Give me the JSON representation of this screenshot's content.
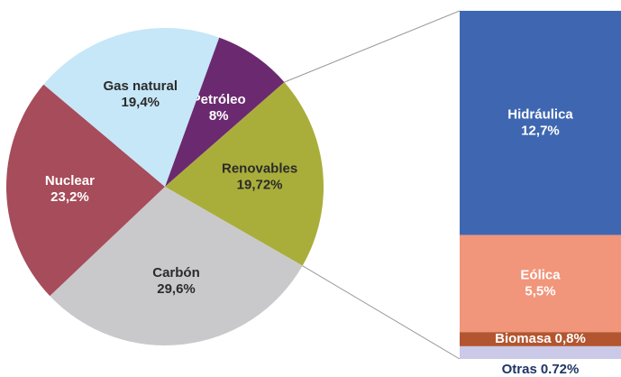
{
  "chart_data": [
    {
      "type": "pie",
      "categories": [
        "Petróleo",
        "Renovables",
        "Carbón",
        "Nuclear",
        "Gas natural"
      ],
      "values": [
        8,
        19.72,
        29.6,
        23.2,
        19.4
      ],
      "value_labels": [
        "8%",
        "19,72%",
        "29,6%",
        "23,2%",
        "19,4%"
      ],
      "colors": [
        "#6b2a6f",
        "#a9ae3b",
        "#c9c9cb",
        "#a64c5b",
        "#c6e7f8"
      ]
    },
    {
      "type": "bar",
      "categories": [
        "Hidráulica",
        "Eólica",
        "Biomasa",
        "Otras"
      ],
      "values": [
        12.7,
        5.5,
        0.8,
        0.72
      ],
      "value_labels": [
        "12,7%",
        "5,5%",
        "0,8%",
        "0.72%"
      ],
      "colors": [
        "#3f67b1",
        "#f1957b",
        "#b3552f",
        "#cac9e7"
      ]
    }
  ]
}
